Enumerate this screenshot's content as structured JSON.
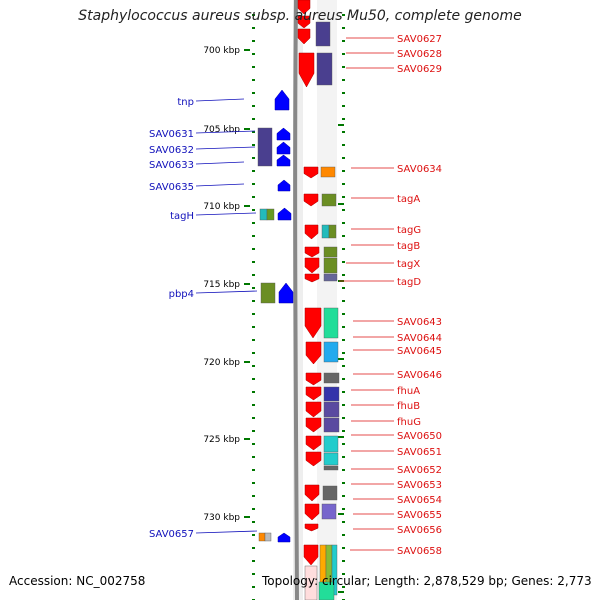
{
  "header": {
    "title": "Staphylococcus aureus subsp. aureus Mu50, complete genome"
  },
  "footer": {
    "accession": "Accession: NC_002758",
    "topology": "Topology: circular; Length: 2,878,529 bp; Genes: 2,773"
  },
  "colors": {
    "reverse_strand": "#0000ff",
    "forward_strand": "#ff0000",
    "reverse_label": "#1111bb",
    "forward_label": "#dd1111",
    "tick": "#007700",
    "dna": "#888888"
  },
  "scale": {
    "labels": [
      "700 kbp",
      "705 kbp",
      "710 kbp",
      "715 kbp",
      "720 kbp",
      "725 kbp",
      "730 kbp"
    ]
  },
  "genes_left": [
    "tnp",
    "SAV0631",
    "SAV0632",
    "SAV0633",
    "SAV0635",
    "tagH",
    "pbp4",
    "SAV0657"
  ],
  "genes_right": [
    "SAV0627",
    "SAV0628",
    "SAV0629",
    "SAV0634",
    "tagA",
    "tagG",
    "tagB",
    "tagX",
    "tagD",
    "SAV0643",
    "SAV0644",
    "SAV0645",
    "SAV0646",
    "fhuA",
    "fhuB",
    "fhuG",
    "SAV0650",
    "SAV0651",
    "SAV0652",
    "SAV0653",
    "SAV0654",
    "SAV0655",
    "SAV0656",
    "SAV0658"
  ]
}
